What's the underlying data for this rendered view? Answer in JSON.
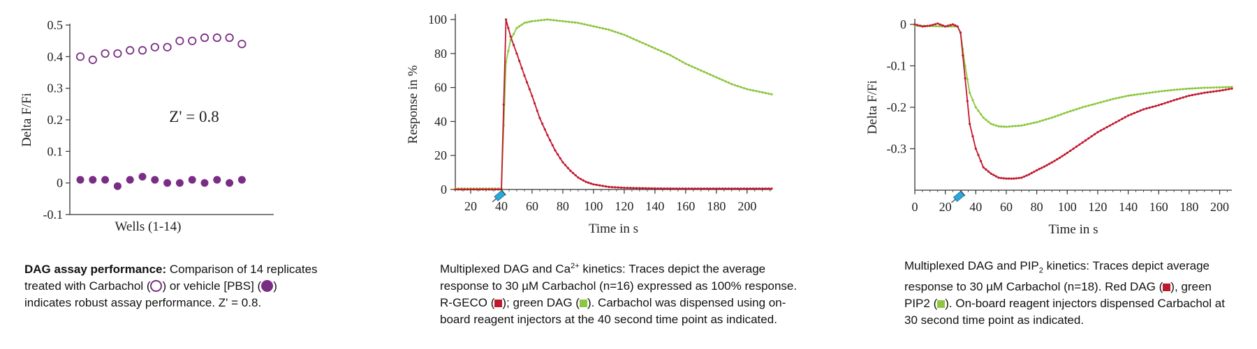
{
  "colors": {
    "purple": "#7a2d85",
    "red": "#c0182d",
    "green": "#8dc63f",
    "injector": "#2aa7de"
  },
  "chart_data": [
    {
      "type": "scatter",
      "xlabel": "Wells (1-14)",
      "ylabel": "Delta F/Fi",
      "ylim": [
        -0.1,
        0.5
      ],
      "yticks": [
        "0.5",
        "0.4",
        "0.3",
        "0.2",
        "0.1",
        "0",
        "-0.1"
      ],
      "annotation": "Z' = 0.8",
      "series": [
        {
          "marker": "open-circle",
          "values": [
            0.4,
            0.39,
            0.41,
            0.41,
            0.42,
            0.42,
            0.43,
            0.43,
            0.45,
            0.45,
            0.46,
            0.46,
            0.46,
            0.44
          ]
        },
        {
          "marker": "filled-circle",
          "values": [
            0.01,
            0.01,
            0.01,
            -0.01,
            0.01,
            0.02,
            0.01,
            0.0,
            0.0,
            0.01,
            0.0,
            0.01,
            0.0,
            0.01
          ]
        }
      ]
    },
    {
      "type": "line",
      "xlabel": "Time in s",
      "ylabel": "Response in %",
      "xlim": [
        10,
        216
      ],
      "ylim": [
        0,
        100
      ],
      "xticks": [
        "20",
        "40",
        "60",
        "80",
        "100",
        "120",
        "140",
        "160",
        "180",
        "200"
      ],
      "yticks": [
        "100",
        "80",
        "60",
        "40",
        "20",
        "0"
      ],
      "injection_time": 40,
      "series": [
        {
          "color": "red",
          "points": [
            [
              10,
              0
            ],
            [
              38,
              0
            ],
            [
              40,
              0
            ],
            [
              43,
              100
            ],
            [
              46,
              90
            ],
            [
              50,
              80
            ],
            [
              55,
              67
            ],
            [
              60,
              55
            ],
            [
              65,
              42
            ],
            [
              70,
              32
            ],
            [
              75,
              23
            ],
            [
              80,
              16
            ],
            [
              85,
              11
            ],
            [
              90,
              7
            ],
            [
              95,
              4.5
            ],
            [
              100,
              3
            ],
            [
              110,
              1.5
            ],
            [
              120,
              1
            ],
            [
              140,
              0.6
            ],
            [
              160,
              0.5
            ],
            [
              180,
              0.5
            ],
            [
              200,
              0.5
            ],
            [
              216,
              0.5
            ]
          ]
        },
        {
          "color": "green",
          "points": [
            [
              10,
              0.5
            ],
            [
              38,
              0.5
            ],
            [
              40,
              0.5
            ],
            [
              43,
              75
            ],
            [
              46,
              88
            ],
            [
              50,
              95
            ],
            [
              55,
              98
            ],
            [
              60,
              99
            ],
            [
              70,
              100
            ],
            [
              80,
              99
            ],
            [
              90,
              98
            ],
            [
              100,
              96
            ],
            [
              110,
              94
            ],
            [
              120,
              91
            ],
            [
              130,
              87
            ],
            [
              140,
              83
            ],
            [
              150,
              79
            ],
            [
              160,
              74
            ],
            [
              170,
              70
            ],
            [
              180,
              66
            ],
            [
              190,
              62
            ],
            [
              200,
              59
            ],
            [
              216,
              56
            ]
          ]
        }
      ]
    },
    {
      "type": "line",
      "xlabel": "Time in s",
      "ylabel": "Delta F/Fi",
      "xlim": [
        0,
        208
      ],
      "ylim": [
        -0.4,
        0
      ],
      "xticks": [
        "0",
        "20",
        "40",
        "60",
        "80",
        "100",
        "120",
        "140",
        "160",
        "180",
        "200"
      ],
      "yticks": [
        "0",
        "-0.1",
        "-0.2",
        "-0.3"
      ],
      "injection_time": 30,
      "series": [
        {
          "color": "red",
          "points": [
            [
              0,
              0
            ],
            [
              5,
              -0.005
            ],
            [
              10,
              -0.003
            ],
            [
              15,
              0.002
            ],
            [
              20,
              -0.005
            ],
            [
              25,
              0
            ],
            [
              28,
              -0.005
            ],
            [
              30,
              -0.02
            ],
            [
              33,
              -0.13
            ],
            [
              36,
              -0.24
            ],
            [
              40,
              -0.3
            ],
            [
              45,
              -0.345
            ],
            [
              50,
              -0.36
            ],
            [
              55,
              -0.37
            ],
            [
              60,
              -0.372
            ],
            [
              65,
              -0.372
            ],
            [
              70,
              -0.37
            ],
            [
              75,
              -0.362
            ],
            [
              80,
              -0.352
            ],
            [
              85,
              -0.343
            ],
            [
              90,
              -0.333
            ],
            [
              95,
              -0.322
            ],
            [
              100,
              -0.31
            ],
            [
              110,
              -0.285
            ],
            [
              120,
              -0.26
            ],
            [
              130,
              -0.24
            ],
            [
              140,
              -0.22
            ],
            [
              150,
              -0.205
            ],
            [
              160,
              -0.195
            ],
            [
              170,
              -0.183
            ],
            [
              180,
              -0.172
            ],
            [
              190,
              -0.165
            ],
            [
              200,
              -0.16
            ],
            [
              208,
              -0.155
            ]
          ]
        },
        {
          "color": "green",
          "points": [
            [
              0,
              -0.003
            ],
            [
              20,
              -0.005
            ],
            [
              28,
              -0.005
            ],
            [
              30,
              -0.02
            ],
            [
              33,
              -0.1
            ],
            [
              36,
              -0.165
            ],
            [
              40,
              -0.2
            ],
            [
              45,
              -0.225
            ],
            [
              50,
              -0.24
            ],
            [
              55,
              -0.246
            ],
            [
              60,
              -0.247
            ],
            [
              70,
              -0.244
            ],
            [
              80,
              -0.236
            ],
            [
              90,
              -0.225
            ],
            [
              100,
              -0.212
            ],
            [
              110,
              -0.2
            ],
            [
              120,
              -0.19
            ],
            [
              130,
              -0.18
            ],
            [
              140,
              -0.172
            ],
            [
              150,
              -0.167
            ],
            [
              160,
              -0.162
            ],
            [
              170,
              -0.158
            ],
            [
              180,
              -0.155
            ],
            [
              190,
              -0.153
            ],
            [
              200,
              -0.152
            ],
            [
              208,
              -0.151
            ]
          ]
        }
      ]
    }
  ],
  "captions": {
    "c1": {
      "lead": "DAG assay performance:",
      "t1": " Comparison of 14 replicates treated with Carbachol (",
      "t2": ") or vehicle [PBS] (",
      "t3": ") indicates robust assay performance. Z' = 0.8."
    },
    "c2": {
      "t1": "Multiplexed DAG and Ca",
      "sup": "2+",
      "t2": " kinetics: Traces depict the average response to 30 µM Carbachol (n=16) expressed as 100% response. R-GECO (",
      "t3": "); green DAG (",
      "t4": "). Carbachol was dispensed using on-board reagent injectors at the 40 second time point as indicated."
    },
    "c3": {
      "t1": "Multiplexed DAG and PIP",
      "sub": "2",
      "t2": " kinetics: Traces depict average response to 30 µM Carbachol (n=18). Red DAG (",
      "t3": "), green PIP2 (",
      "t4": "). On-board reagent injectors dispensed Carbachol at 30 second time point as indicated."
    }
  }
}
